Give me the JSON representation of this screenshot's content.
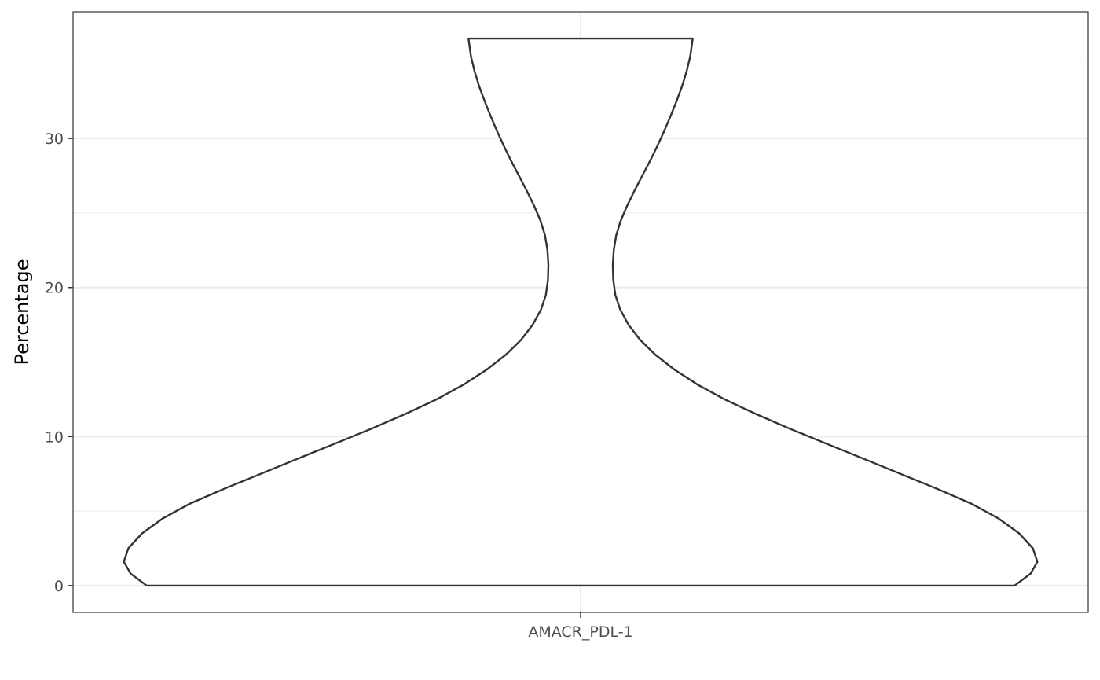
{
  "chart_data": {
    "type": "violin",
    "categories": [
      "AMACR_PDL-1"
    ],
    "xlabel": "",
    "ylabel": "Percentage",
    "ylim": [
      -1.8,
      38.5
    ],
    "yticks": [
      0,
      10,
      20,
      30
    ],
    "grid": true,
    "violins": [
      {
        "category": "AMACR_PDL-1",
        "y_min": 0,
        "y_max": 36.7,
        "density_profile": [
          {
            "y": 0,
            "w": 0.95
          },
          {
            "y": 0.8,
            "w": 0.985
          },
          {
            "y": 1.6,
            "w": 1.0
          },
          {
            "y": 2.5,
            "w": 0.99
          },
          {
            "y": 3.5,
            "w": 0.96
          },
          {
            "y": 4.5,
            "w": 0.915
          },
          {
            "y": 5.5,
            "w": 0.855
          },
          {
            "y": 6.5,
            "w": 0.78
          },
          {
            "y": 7.5,
            "w": 0.7
          },
          {
            "y": 8.5,
            "w": 0.62
          },
          {
            "y": 9.5,
            "w": 0.54
          },
          {
            "y": 10.5,
            "w": 0.46
          },
          {
            "y": 11.5,
            "w": 0.385
          },
          {
            "y": 12.5,
            "w": 0.315
          },
          {
            "y": 13.5,
            "w": 0.255
          },
          {
            "y": 14.5,
            "w": 0.205
          },
          {
            "y": 15.5,
            "w": 0.163
          },
          {
            "y": 16.5,
            "w": 0.13
          },
          {
            "y": 17.5,
            "w": 0.105
          },
          {
            "y": 18.5,
            "w": 0.087
          },
          {
            "y": 19.5,
            "w": 0.076
          },
          {
            "y": 20.5,
            "w": 0.0715
          },
          {
            "y": 21.5,
            "w": 0.0705
          },
          {
            "y": 22.5,
            "w": 0.0725
          },
          {
            "y": 23.5,
            "w": 0.078
          },
          {
            "y": 24.5,
            "w": 0.088
          },
          {
            "y": 25.5,
            "w": 0.102
          },
          {
            "y": 26.5,
            "w": 0.118
          },
          {
            "y": 27.5,
            "w": 0.135
          },
          {
            "y": 28.5,
            "w": 0.152
          },
          {
            "y": 29.5,
            "w": 0.168
          },
          {
            "y": 30.5,
            "w": 0.183
          },
          {
            "y": 31.5,
            "w": 0.197
          },
          {
            "y": 32.5,
            "w": 0.21
          },
          {
            "y": 33.5,
            "w": 0.222
          },
          {
            "y": 34.5,
            "w": 0.232
          },
          {
            "y": 35.5,
            "w": 0.24
          },
          {
            "y": 36.7,
            "w": 0.2455
          }
        ]
      }
    ]
  }
}
